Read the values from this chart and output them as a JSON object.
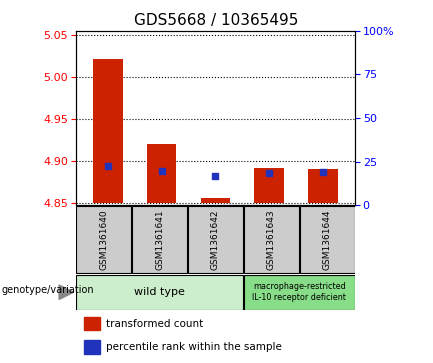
{
  "title": "GDS5668 / 10365495",
  "samples": [
    "GSM1361640",
    "GSM1361641",
    "GSM1361642",
    "GSM1361643",
    "GSM1361644"
  ],
  "bar_base": 4.85,
  "bar_tops": [
    5.022,
    4.921,
    4.856,
    4.892,
    4.891
  ],
  "blue_vals": [
    4.895,
    4.888,
    4.882,
    4.886,
    4.887
  ],
  "ylim_left": [
    4.848,
    5.055
  ],
  "ylim_right": [
    0,
    100
  ],
  "left_ticks": [
    4.85,
    4.9,
    4.95,
    5.0,
    5.05
  ],
  "right_ticks": [
    0,
    25,
    50,
    75,
    100
  ],
  "right_tick_labels": [
    "0",
    "25",
    "50",
    "75",
    "100%"
  ],
  "group1_indices": [
    0,
    1,
    2
  ],
  "group2_indices": [
    3,
    4
  ],
  "group1_label": "wild type",
  "group2_label": "macrophage-restricted\nIL-10 receptor deficient",
  "group_row_label": "genotype/variation",
  "legend_red_label": "transformed count",
  "legend_blue_label": "percentile rank within the sample",
  "bar_color": "#cc2200",
  "blue_color": "#2233bb",
  "bar_width": 0.55,
  "plot_bg": "#ffffff",
  "sample_area_bg": "#cccccc",
  "group1_bg": "#cceecc",
  "group2_bg": "#88dd88",
  "dotted_line_color": "#000000",
  "title_fontsize": 11,
  "tick_fontsize": 8,
  "label_fontsize": 7.5
}
